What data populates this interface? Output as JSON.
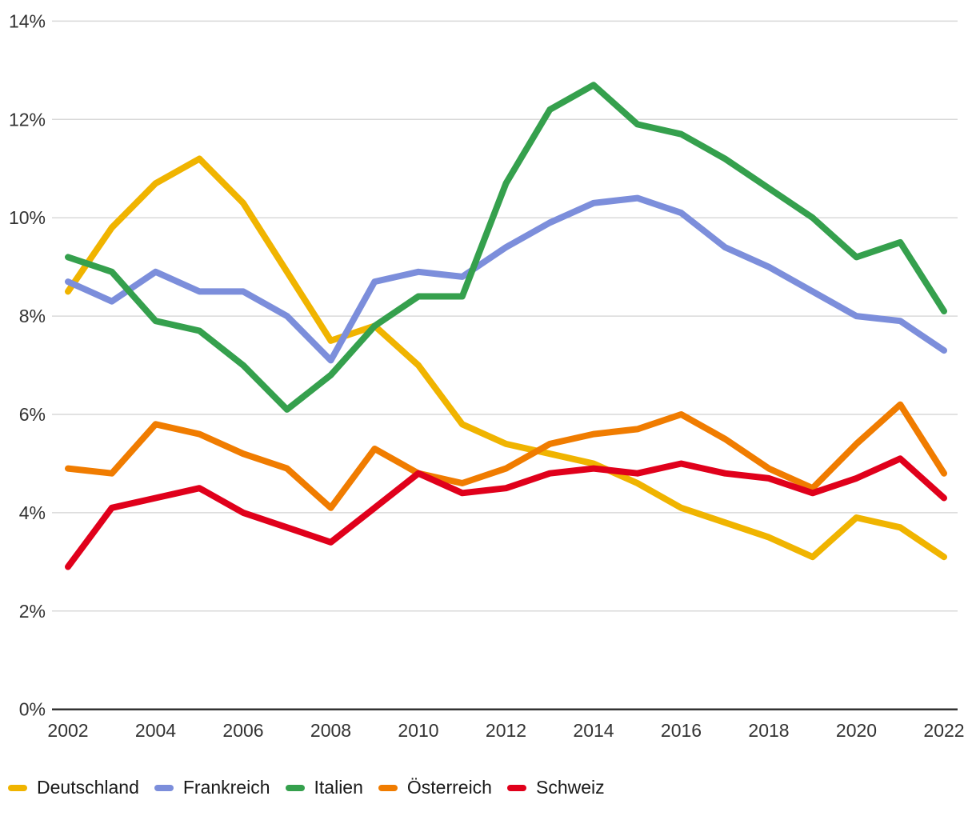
{
  "chart_data": {
    "type": "line",
    "x": [
      2002,
      2003,
      2004,
      2005,
      2006,
      2007,
      2008,
      2009,
      2010,
      2011,
      2012,
      2013,
      2014,
      2015,
      2016,
      2017,
      2018,
      2019,
      2020,
      2021,
      2022
    ],
    "x_tick_labels": [
      "2002",
      "2004",
      "2006",
      "2008",
      "2010",
      "2012",
      "2014",
      "2016",
      "2018",
      "2020",
      "2022"
    ],
    "y_ticks": [
      0,
      2,
      4,
      6,
      8,
      10,
      12,
      14
    ],
    "y_tick_suffix": "%",
    "ylim": [
      0,
      14
    ],
    "grid": "horizontal-only",
    "legend_position": "bottom-left",
    "series": [
      {
        "name": "Deutschland",
        "color": "#F0B400",
        "values": [
          8.5,
          9.8,
          10.7,
          11.2,
          10.3,
          8.9,
          7.5,
          7.8,
          7.0,
          5.8,
          5.4,
          5.2,
          5.0,
          4.6,
          4.1,
          3.8,
          3.5,
          3.1,
          3.9,
          3.7,
          3.1
        ]
      },
      {
        "name": "Frankreich",
        "color": "#7C8EDB",
        "values": [
          8.7,
          8.3,
          8.9,
          8.5,
          8.5,
          8.0,
          7.1,
          8.7,
          8.9,
          8.8,
          9.4,
          9.9,
          10.3,
          10.4,
          10.1,
          9.4,
          9.0,
          8.5,
          8.0,
          7.9,
          7.3
        ]
      },
      {
        "name": "Italien",
        "color": "#35A04D",
        "values": [
          9.2,
          8.9,
          7.9,
          7.7,
          7.0,
          6.1,
          6.8,
          7.8,
          8.4,
          8.4,
          10.7,
          12.2,
          12.7,
          11.9,
          11.7,
          11.2,
          10.6,
          10.0,
          9.2,
          9.5,
          8.1
        ]
      },
      {
        "name": "Österreich",
        "color": "#F07C00",
        "values": [
          4.9,
          4.8,
          5.8,
          5.6,
          5.2,
          4.9,
          4.1,
          5.3,
          4.8,
          4.6,
          4.9,
          5.4,
          5.6,
          5.7,
          6.0,
          5.5,
          4.9,
          4.5,
          5.4,
          6.2,
          4.8
        ]
      },
      {
        "name": "Schweiz",
        "color": "#E0001B",
        "values": [
          2.9,
          4.1,
          4.3,
          4.5,
          4.0,
          3.7,
          3.4,
          4.1,
          4.8,
          4.4,
          4.5,
          4.8,
          4.9,
          4.8,
          5.0,
          4.8,
          4.7,
          4.4,
          4.7,
          5.1,
          4.3
        ]
      }
    ],
    "colors": {
      "gridline": "#D9D9D9",
      "axis_line": "#333333",
      "tick_text": "#333333",
      "legend_text": "#1a1a1a",
      "background": "#ffffff"
    }
  }
}
